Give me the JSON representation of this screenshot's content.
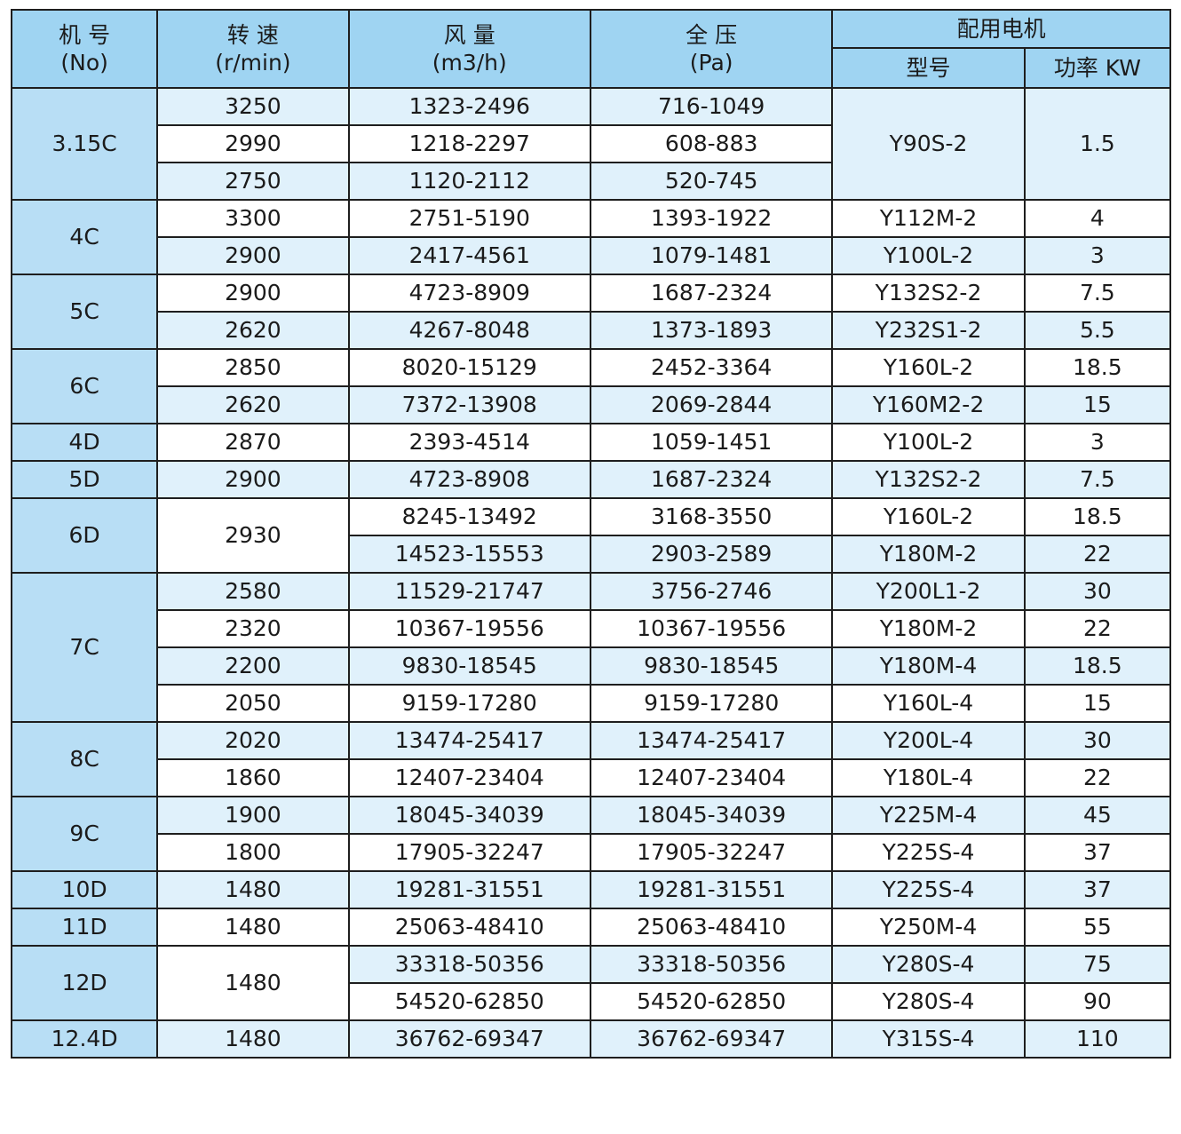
{
  "header": {
    "no": {
      "l1": "机 号",
      "l2": "(No)"
    },
    "speed": {
      "l1": "转 速",
      "l2": "(r/min)"
    },
    "flow": {
      "l1": "风 量",
      "l2": "(m3/h)"
    },
    "pressure": {
      "l1": "全 压",
      "l2": "(Pa)"
    },
    "motor": "配用电机",
    "motor_type": "型号",
    "motor_power": "功率 KW"
  },
  "rows": [
    {
      "no": "3.15C",
      "speed": "3250",
      "flow": "1323-2496",
      "pressure": "716-1049",
      "motor": "Y90S-2",
      "power": "1.5"
    },
    {
      "speed": "2990",
      "flow": "1218-2297",
      "pressure": "608-883"
    },
    {
      "speed": "2750",
      "flow": "1120-2112",
      "pressure": "520-745"
    },
    {
      "no": "4C",
      "speed": "3300",
      "flow": "2751-5190",
      "pressure": "1393-1922",
      "motor": "Y112M-2",
      "power": "4"
    },
    {
      "speed": "2900",
      "flow": "2417-4561",
      "pressure": "1079-1481",
      "motor": "Y100L-2",
      "power": "3"
    },
    {
      "no": "5C",
      "speed": "2900",
      "flow": "4723-8909",
      "pressure": "1687-2324",
      "motor": "Y132S2-2",
      "power": "7.5"
    },
    {
      "speed": "2620",
      "flow": "4267-8048",
      "pressure": "1373-1893",
      "motor": "Y232S1-2",
      "power": "5.5"
    },
    {
      "no": "6C",
      "speed": "2850",
      "flow": "8020-15129",
      "pressure": "2452-3364",
      "motor": "Y160L-2",
      "power": "18.5"
    },
    {
      "speed": "2620",
      "flow": "7372-13908",
      "pressure": "2069-2844",
      "motor": "Y160M2-2",
      "power": "15"
    },
    {
      "no": "4D",
      "speed": "2870",
      "flow": "2393-4514",
      "pressure": "1059-1451",
      "motor": "Y100L-2",
      "power": "3"
    },
    {
      "no": "5D",
      "speed": "2900",
      "flow": "4723-8908",
      "pressure": "1687-2324",
      "motor": "Y132S2-2",
      "power": "7.5"
    },
    {
      "no": "6D",
      "speed": "2930",
      "flow": "8245-13492",
      "pressure": "3168-3550",
      "motor": "Y160L-2",
      "power": "18.5"
    },
    {
      "flow": "14523-15553",
      "pressure": "2903-2589",
      "motor": "Y180M-2",
      "power": "22"
    },
    {
      "no": "7C",
      "speed": "2580",
      "flow": "11529-21747",
      "pressure": "3756-2746",
      "motor": "Y200L1-2",
      "power": "30"
    },
    {
      "speed": "2320",
      "flow": "10367-19556",
      "pressure": "10367-19556",
      "motor": "Y180M-2",
      "power": "22"
    },
    {
      "speed": "2200",
      "flow": "9830-18545",
      "pressure": "9830-18545",
      "motor": "Y180M-4",
      "power": "18.5"
    },
    {
      "speed": "2050",
      "flow": "9159-17280",
      "pressure": "9159-17280",
      "motor": "Y160L-4",
      "power": "15"
    },
    {
      "no": "8C",
      "speed": "2020",
      "flow": "13474-25417",
      "pressure": "13474-25417",
      "motor": "Y200L-4",
      "power": "30"
    },
    {
      "speed": "1860",
      "flow": "12407-23404",
      "pressure": "12407-23404",
      "motor": "Y180L-4",
      "power": "22"
    },
    {
      "no": "9C",
      "speed": "1900",
      "flow": "18045-34039",
      "pressure": "18045-34039",
      "motor": "Y225M-4",
      "power": "45"
    },
    {
      "speed": "1800",
      "flow": "17905-32247",
      "pressure": "17905-32247",
      "motor": "Y225S-4",
      "power": "37"
    },
    {
      "no": "10D",
      "speed": "1480",
      "flow": "19281-31551",
      "pressure": "19281-31551",
      "motor": "Y225S-4",
      "power": "37"
    },
    {
      "no": "11D",
      "speed": "1480",
      "flow": "25063-48410",
      "pressure": "25063-48410",
      "motor": "Y250M-4",
      "power": "55"
    },
    {
      "no": "12D",
      "speed": "1480",
      "flow": "33318-50356",
      "pressure": "33318-50356",
      "motor": "Y280S-4",
      "power": "75"
    },
    {
      "flow": "54520-62850",
      "pressure": "54520-62850",
      "motor": "Y280S-4",
      "power": "90"
    },
    {
      "no": "12.4D",
      "speed": "1480",
      "flow": "36762-69347",
      "pressure": "36762-69347",
      "motor": "Y315S-4",
      "power": "110"
    }
  ]
}
